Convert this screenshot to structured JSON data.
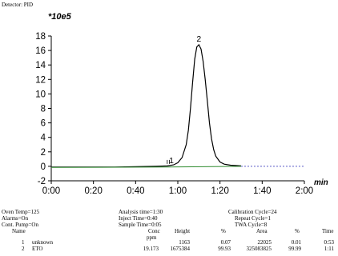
{
  "detector_label": "Detector: PID",
  "scale_label": "*10e5",
  "chart_data": {
    "type": "line",
    "title": "",
    "xlabel": "min",
    "ylabel": "",
    "x_ticks": [
      "0:00",
      "0:20",
      "0:40",
      "1:00",
      "1:20",
      "1:40",
      "2:00"
    ],
    "y_ticks": [
      "-2",
      "0",
      "2",
      "4",
      "6",
      "8",
      "10",
      "12",
      "14",
      "16",
      "18"
    ],
    "xlim": [
      0,
      120
    ],
    "ylim": [
      -2,
      18
    ],
    "series": [
      {
        "color": "#000000",
        "x": [
          0,
          10,
          20,
          30,
          40,
          50,
          55,
          58,
          60,
          62,
          64,
          65,
          66,
          67,
          68,
          69,
          70,
          71,
          72,
          73,
          74,
          75,
          76,
          77,
          78,
          80,
          82,
          85,
          88,
          90
        ],
        "y": [
          -0.1,
          -0.1,
          -0.1,
          -0.1,
          -0.05,
          0.0,
          0.05,
          0.2,
          0.5,
          1.2,
          3.0,
          5.0,
          8.0,
          11.5,
          14.8,
          16.5,
          16.8,
          16.2,
          14.5,
          12.0,
          9.0,
          6.0,
          3.8,
          2.3,
          1.4,
          0.6,
          0.3,
          0.15,
          0.1,
          0.05
        ]
      },
      {
        "color": "#2e8b2e",
        "x": [
          0,
          55,
          90
        ],
        "y": [
          -0.15,
          -0.1,
          0.0
        ]
      }
    ],
    "baseline_extension": {
      "color": "#5a5ac8",
      "x": [
        90,
        120
      ],
      "y": [
        0.0,
        0.0
      ]
    },
    "peak_labels": [
      {
        "label": "1",
        "x": 57,
        "y": 0.1
      },
      {
        "label": "2",
        "x": 70,
        "y": 16.9
      }
    ],
    "event_marks": [
      55,
      56
    ],
    "legend": "none",
    "grid": false
  },
  "run_info": {
    "col1": [
      "Oven Temp=125",
      "Alarms=On",
      "Cont. Pump=On"
    ],
    "col2": [
      "Analysis time=1:30",
      "Inject Time=0:40",
      "Sample Time=0:05"
    ],
    "col3": [
      "Calibration Cycle=24",
      "Repeat Cycle=1",
      "TWA Cycle=8"
    ]
  },
  "results": {
    "headers": {
      "name": "Name",
      "conc": "Conc",
      "conc_unit": "ppm",
      "height": "Height",
      "height_pct": "%",
      "area": "Area",
      "area_pct": "%",
      "time": "Time"
    },
    "rows": [
      {
        "num": "1",
        "name": "unknown",
        "conc": "",
        "height": "1163",
        "height_pct": "0.07",
        "area": "22025",
        "area_pct": "0.01",
        "time": "0:53"
      },
      {
        "num": "2",
        "name": "ETO",
        "conc": "19.173",
        "height": "1675384",
        "height_pct": "99.93",
        "area": "325083825",
        "area_pct": "99.99",
        "time": "1:11"
      }
    ]
  }
}
